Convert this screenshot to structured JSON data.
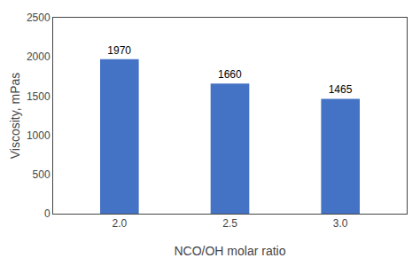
{
  "chart_data": {
    "type": "bar",
    "categories": [
      "2.0",
      "2.5",
      "3.0"
    ],
    "values": [
      1970,
      1660,
      1465
    ],
    "color": "#4472C4",
    "xlabel": "NCO/OH molar ratio",
    "ylabel": "Viscosity, mPas",
    "ylim": [
      0,
      2500
    ],
    "yticks": [
      0,
      500,
      1000,
      1500,
      2000,
      2500
    ],
    "grid": false,
    "data_labels": true
  }
}
